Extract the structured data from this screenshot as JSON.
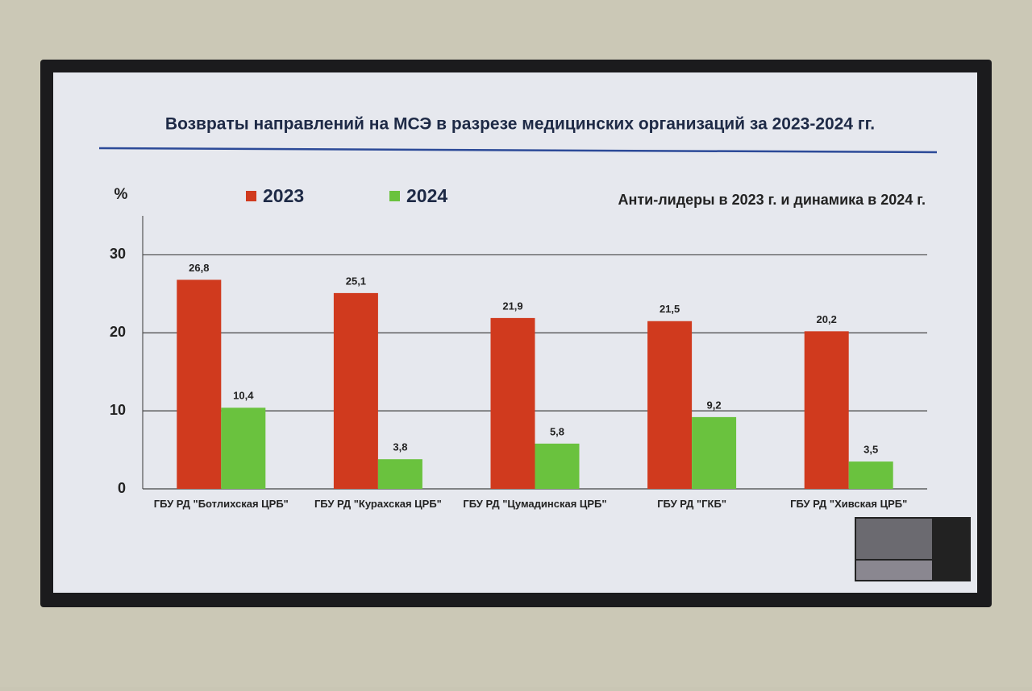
{
  "chart_data": {
    "type": "bar",
    "title": "Возвраты направлений на МСЭ в разрезе медицинских организаций за 2023-2024 гг.",
    "subtitle": "Анти-лидеры в 2023 г. и динамика в 2024 г.",
    "y_label": "%",
    "categories": [
      "ГБУ РД \"Ботлихская ЦРБ\"",
      "ГБУ РД \"Курахская ЦРБ\"",
      "ГБУ РД \"Цумадинская ЦРБ\"",
      "ГБУ РД \"ГКБ\"",
      "ГБУ РД \"Хивская ЦРБ\""
    ],
    "series": [
      {
        "name": "2023",
        "color": "#d03a1e",
        "values": [
          26.8,
          25.1,
          21.9,
          21.5,
          20.2
        ],
        "value_labels": [
          "26,8",
          "25,1",
          "21,9",
          "21,5",
          "20,2"
        ]
      },
      {
        "name": "2024",
        "color": "#6ac23e",
        "values": [
          10.4,
          3.8,
          5.8,
          9.2,
          3.5
        ],
        "value_labels": [
          "10,4",
          "3,8",
          "5,8",
          "9,2",
          "3,5"
        ]
      }
    ],
    "ylim": [
      0,
      35
    ],
    "yticks": [
      0,
      10,
      20,
      30
    ],
    "grid": true
  }
}
